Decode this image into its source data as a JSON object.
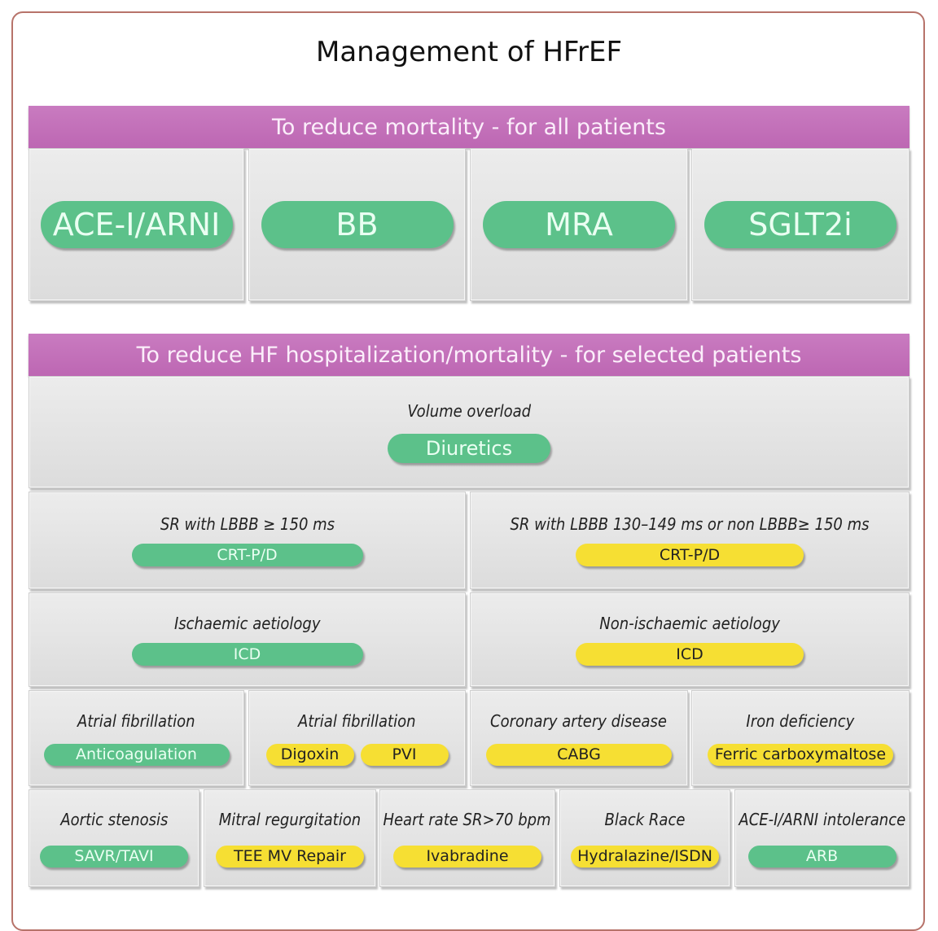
{
  "title": "Management of HFrEF",
  "colors": {
    "green": "#5cc18a",
    "yellow": "#f6df33",
    "header": "#c46fb8"
  },
  "section1": {
    "header": "To reduce mortality - for all patients",
    "cells": [
      {
        "label": "",
        "pills": [
          {
            "text": "ACE-I/ARNI",
            "color": "green"
          }
        ]
      },
      {
        "label": "",
        "pills": [
          {
            "text": "BB",
            "color": "green"
          }
        ]
      },
      {
        "label": "",
        "pills": [
          {
            "text": "MRA",
            "color": "green"
          }
        ]
      },
      {
        "label": "",
        "pills": [
          {
            "text": "SGLT2i",
            "color": "green"
          }
        ]
      }
    ]
  },
  "section2": {
    "header": "To reduce HF hospitalization/mortality - for selected patients",
    "rows": [
      [
        {
          "label": "Volume overload",
          "pills": [
            {
              "text": "Diuretics",
              "color": "green"
            }
          ]
        }
      ],
      [
        {
          "label": "SR with LBBB ≥ 150 ms",
          "pills": [
            {
              "text": "CRT-P/D",
              "color": "green"
            }
          ]
        },
        {
          "label": "SR with LBBB 130–149 ms or non LBBB≥ 150 ms",
          "pills": [
            {
              "text": "CRT-P/D",
              "color": "yellow"
            }
          ]
        }
      ],
      [
        {
          "label": "Ischaemic aetiology",
          "pills": [
            {
              "text": "ICD",
              "color": "green"
            }
          ]
        },
        {
          "label": "Non-ischaemic aetiology",
          "pills": [
            {
              "text": "ICD",
              "color": "yellow"
            }
          ]
        }
      ],
      [
        {
          "label": "Atrial fibrillation",
          "pills": [
            {
              "text": "Anticoagulation",
              "color": "green"
            }
          ]
        },
        {
          "label": "Atrial fibrillation",
          "pills": [
            {
              "text": "Digoxin",
              "color": "yellow"
            },
            {
              "text": "PVI",
              "color": "yellow"
            }
          ]
        },
        {
          "label": "Coronary artery disease",
          "pills": [
            {
              "text": "CABG",
              "color": "yellow"
            }
          ]
        },
        {
          "label": "Iron deficiency",
          "pills": [
            {
              "text": "Ferric carboxymaltose",
              "color": "yellow"
            }
          ]
        }
      ],
      [
        {
          "label": "Aortic stenosis",
          "pills": [
            {
              "text": "SAVR/TAVI",
              "color": "green"
            }
          ]
        },
        {
          "label": "Mitral regurgitation",
          "pills": [
            {
              "text": "TEE MV Repair",
              "color": "yellow"
            }
          ]
        },
        {
          "label": "Heart rate SR>70 bpm",
          "pills": [
            {
              "text": "Ivabradine",
              "color": "yellow"
            }
          ]
        },
        {
          "label": "Black Race",
          "pills": [
            {
              "text": "Hydralazine/ISDN",
              "color": "yellow"
            }
          ]
        },
        {
          "label": "ACE-I/ARNI intolerance",
          "pills": [
            {
              "text": "ARB",
              "color": "green"
            }
          ]
        }
      ]
    ]
  }
}
